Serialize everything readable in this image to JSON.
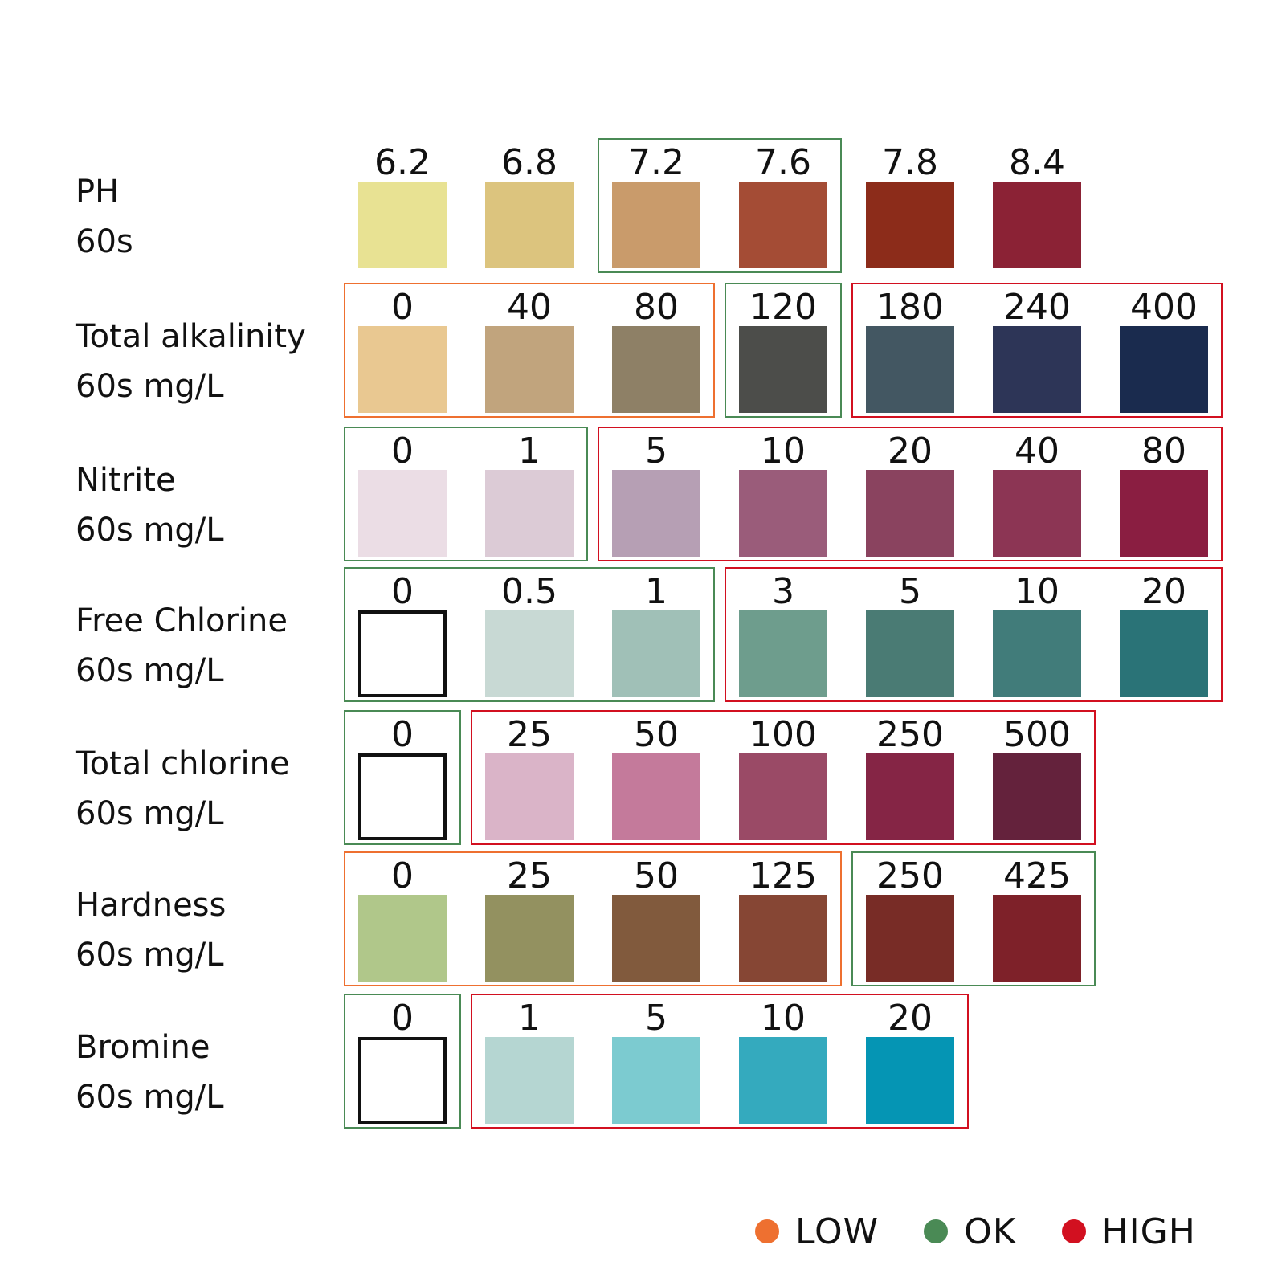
{
  "colors": {
    "low": "#ee7030",
    "ok": "#4a8a55",
    "high": "#d21020"
  },
  "legend": [
    {
      "key": "low",
      "label": "LOW"
    },
    {
      "key": "ok",
      "label": "OK"
    },
    {
      "key": "high",
      "label": "HIGH"
    }
  ],
  "rows": [
    {
      "name": "PH",
      "unit": "60s",
      "swatches": [
        {
          "value": "6.2",
          "color": "#e8e293"
        },
        {
          "value": "6.8",
          "color": "#dcc47e"
        },
        {
          "value": "7.2",
          "color": "#c99b6b"
        },
        {
          "value": "7.6",
          "color": "#a44c35"
        },
        {
          "value": "7.8",
          "color": "#8c2c1a"
        },
        {
          "value": "8.4",
          "color": "#8b2235"
        }
      ],
      "groups": [
        {
          "status": "ok",
          "from": 2,
          "to": 3
        }
      ]
    },
    {
      "name": "Total alkalinity",
      "unit": "60s mg/L",
      "swatches": [
        {
          "value": "0",
          "color": "#e9c891"
        },
        {
          "value": "40",
          "color": "#c1a47d"
        },
        {
          "value": "80",
          "color": "#8e8066"
        },
        {
          "value": "120",
          "color": "#4c4d4a"
        },
        {
          "value": "180",
          "color": "#435762"
        },
        {
          "value": "240",
          "color": "#2d3557"
        },
        {
          "value": "400",
          "color": "#1a2b4e"
        }
      ],
      "groups": [
        {
          "status": "low",
          "from": 0,
          "to": 2
        },
        {
          "status": "ok",
          "from": 3,
          "to": 3
        },
        {
          "status": "high",
          "from": 4,
          "to": 6
        }
      ]
    },
    {
      "name": "Nitrite",
      "unit": "60s mg/L",
      "swatches": [
        {
          "value": "0",
          "color": "#ebdde5"
        },
        {
          "value": "1",
          "color": "#dccbd6"
        },
        {
          "value": "5",
          "color": "#b69fb4"
        },
        {
          "value": "10",
          "color": "#9a5c7a"
        },
        {
          "value": "20",
          "color": "#8a435f"
        },
        {
          "value": "40",
          "color": "#8c3554"
        },
        {
          "value": "80",
          "color": "#8a1e41"
        }
      ],
      "groups": [
        {
          "status": "ok",
          "from": 0,
          "to": 1
        },
        {
          "status": "high",
          "from": 2,
          "to": 6
        }
      ]
    },
    {
      "name": "Free Chlorine",
      "unit": "60s mg/L",
      "swatches": [
        {
          "value": "0",
          "color": "#ffffff",
          "outline": true
        },
        {
          "value": "0.5",
          "color": "#c8d9d4"
        },
        {
          "value": "1",
          "color": "#a0c0b7"
        },
        {
          "value": "3",
          "color": "#6e9d8d"
        },
        {
          "value": "5",
          "color": "#4a7b74"
        },
        {
          "value": "10",
          "color": "#417c7a"
        },
        {
          "value": "20",
          "color": "#2a7377"
        }
      ],
      "groups": [
        {
          "status": "ok",
          "from": 0,
          "to": 2
        },
        {
          "status": "high",
          "from": 3,
          "to": 6
        }
      ]
    },
    {
      "name": "Total chlorine",
      "unit": "60s mg/L",
      "swatches": [
        {
          "value": "0",
          "color": "#ffffff",
          "outline": true
        },
        {
          "value": "25",
          "color": "#dab4c8"
        },
        {
          "value": "50",
          "color": "#c47a9b"
        },
        {
          "value": "100",
          "color": "#9a4a66"
        },
        {
          "value": "250",
          "color": "#852545"
        },
        {
          "value": "500",
          "color": "#64223c"
        }
      ],
      "groups": [
        {
          "status": "ok",
          "from": 0,
          "to": 0
        },
        {
          "status": "high",
          "from": 1,
          "to": 5
        }
      ]
    },
    {
      "name": "Hardness",
      "unit": "60s mg/L",
      "swatches": [
        {
          "value": "0",
          "color": "#b0c78a"
        },
        {
          "value": "25",
          "color": "#939160"
        },
        {
          "value": "50",
          "color": "#815a3d"
        },
        {
          "value": "125",
          "color": "#864634"
        },
        {
          "value": "250",
          "color": "#782c26"
        },
        {
          "value": "425",
          "color": "#7e2129"
        }
      ],
      "groups": [
        {
          "status": "low",
          "from": 0,
          "to": 3
        },
        {
          "status": "ok",
          "from": 4,
          "to": 5
        }
      ]
    },
    {
      "name": "Bromine",
      "unit": "60s mg/L",
      "swatches": [
        {
          "value": "0",
          "color": "#ffffff",
          "outline": true
        },
        {
          "value": "1",
          "color": "#b5d6d2"
        },
        {
          "value": "5",
          "color": "#7ccbd0"
        },
        {
          "value": "10",
          "color": "#34aabe"
        },
        {
          "value": "20",
          "color": "#0595b4"
        }
      ],
      "groups": [
        {
          "status": "ok",
          "from": 0,
          "to": 0
        },
        {
          "status": "high",
          "from": 1,
          "to": 4
        }
      ]
    }
  ]
}
